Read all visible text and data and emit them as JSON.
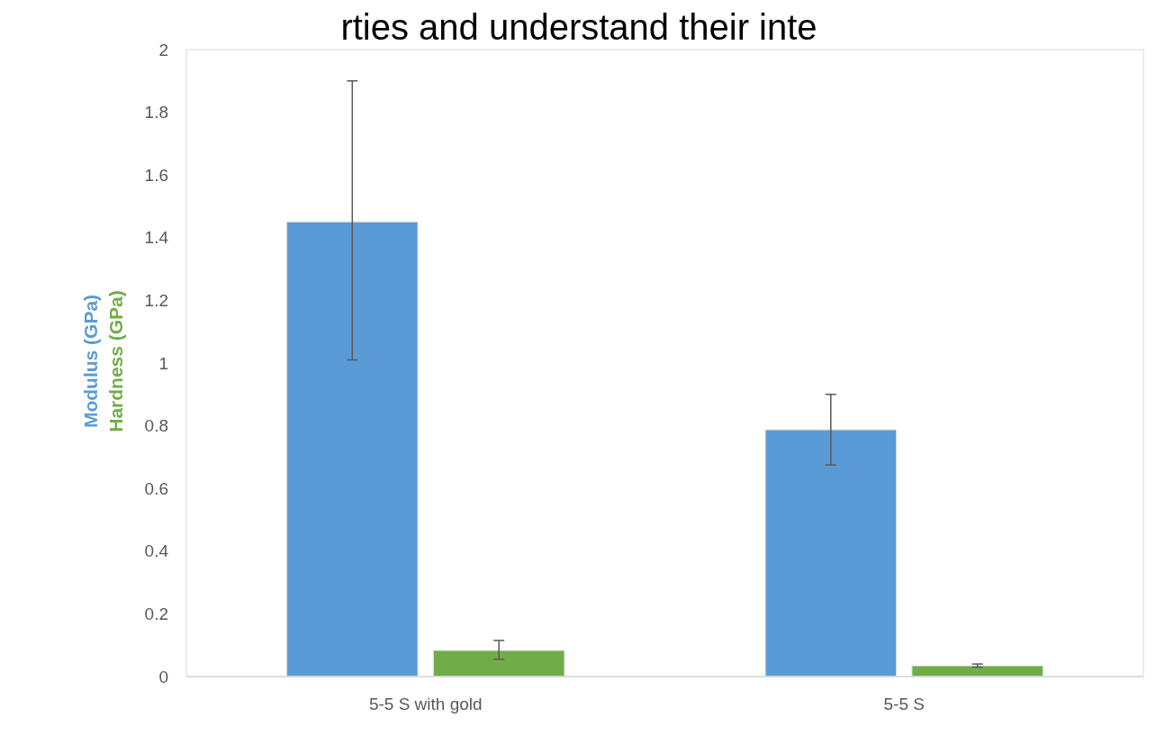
{
  "chart_data": {
    "type": "bar",
    "annotations": [
      "rties and understand their inte"
    ],
    "categories": [
      "5-5 S with gold",
      "5-5 S"
    ],
    "series": [
      {
        "name": "Modulus (GPa)",
        "color": "#5b9bd5",
        "values": [
          1.45,
          0.787
        ],
        "errors": [
          [
            1.01,
            1.9
          ],
          [
            0.675,
            0.9
          ]
        ]
      },
      {
        "name": "Hardness (GPa)",
        "color": "#70ad47",
        "values": [
          0.083,
          0.034
        ],
        "errors": [
          [
            0.055,
            0.115
          ],
          [
            0.03,
            0.04
          ]
        ]
      }
    ],
    "ylim": [
      0,
      2
    ],
    "yticks": [
      0,
      0.2,
      0.4,
      0.6,
      0.8,
      1,
      {
        "value": 1.2,
        "label": "1.2"
      },
      1.4,
      1.6,
      1.8,
      2
    ],
    "grid": false
  }
}
